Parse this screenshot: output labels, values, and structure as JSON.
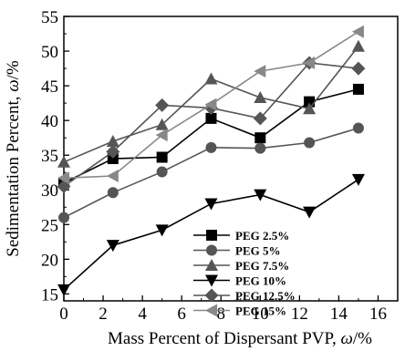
{
  "chart_data": {
    "type": "line",
    "xlabel_main": "Mass Percent of Dispersant PVP, ",
    "xlabel_symbol": "ω",
    "xlabel_unit": "/%",
    "ylabel_main": "Sedimentation Percent, ",
    "ylabel_symbol": "ω",
    "ylabel_unit": "/%",
    "xlim": [
      0,
      17
    ],
    "ylim": [
      14,
      55
    ],
    "xticks": [
      0,
      2,
      4,
      6,
      8,
      10,
      12,
      14,
      16
    ],
    "yticks": [
      15,
      20,
      25,
      30,
      35,
      40,
      45,
      50,
      55
    ],
    "x": [
      0,
      2.5,
      5,
      7.5,
      10,
      12.5,
      15
    ],
    "legend_position": "lower-right",
    "series": [
      {
        "name": "PEG 2.5%",
        "marker": "square",
        "color": "#000000",
        "values": [
          31.0,
          34.5,
          34.7,
          40.3,
          37.5,
          42.7,
          44.5
        ]
      },
      {
        "name": "PEG 5%",
        "marker": "circle",
        "color": "#555555",
        "values": [
          26.0,
          29.6,
          32.6,
          36.1,
          36.0,
          36.8,
          38.9
        ]
      },
      {
        "name": "PEG 7.5%",
        "marker": "triangle-up",
        "color": "#555555",
        "values": [
          34.0,
          37.0,
          39.4,
          46.0,
          43.3,
          41.7,
          50.7
        ]
      },
      {
        "name": "PEG 10%",
        "marker": "triangle-down",
        "color": "#000000",
        "values": [
          15.6,
          22.0,
          24.2,
          28.0,
          29.3,
          26.8,
          31.5
        ]
      },
      {
        "name": "PEG 12.5%",
        "marker": "diamond",
        "color": "#555555",
        "values": [
          30.5,
          35.5,
          42.2,
          41.8,
          40.3,
          48.3,
          47.5
        ]
      },
      {
        "name": "PEG 15%",
        "marker": "triangle-left",
        "color": "#888888",
        "values": [
          31.7,
          32.0,
          37.9,
          42.3,
          47.1,
          48.3,
          52.8
        ]
      }
    ]
  }
}
